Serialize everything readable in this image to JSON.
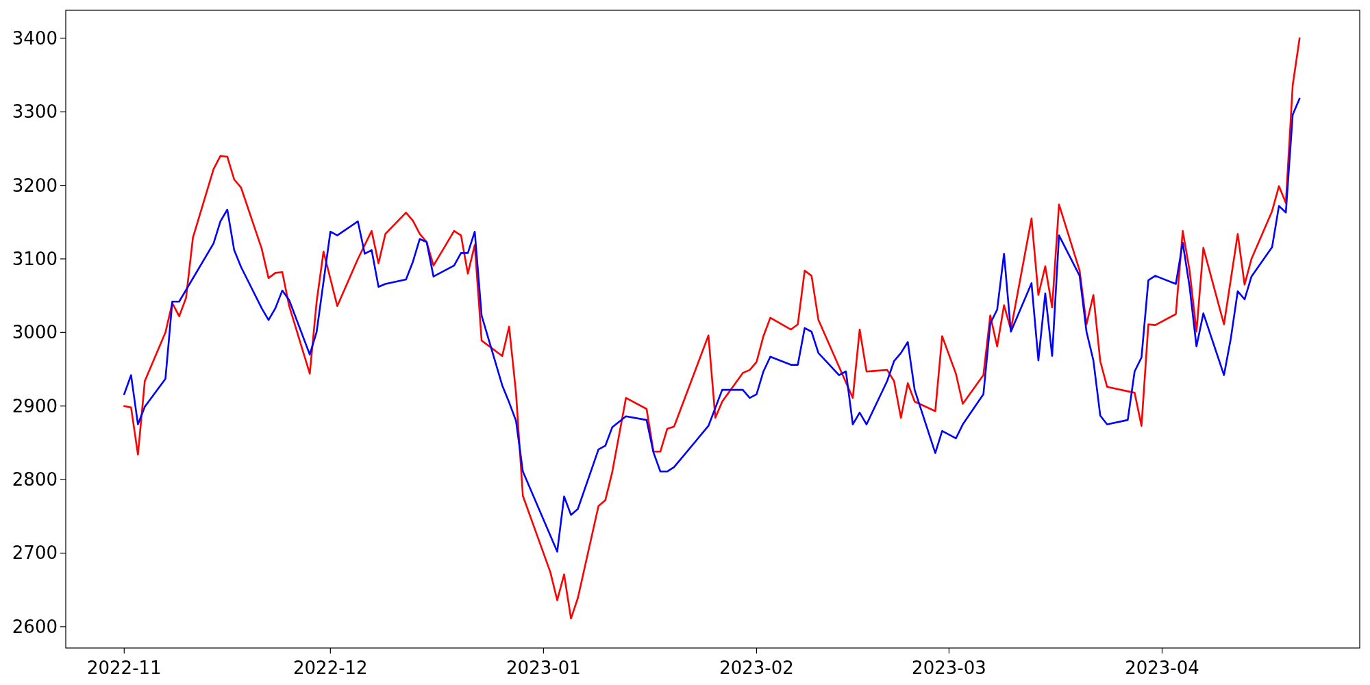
{
  "chart_data": {
    "type": "line",
    "xlim": [
      "2022-10-23T12:00",
      "2023-04-29T18:00"
    ],
    "ylim": [
      2571,
      3438
    ],
    "xticks": [
      "2022-11",
      "2022-12",
      "2023-01",
      "2023-02",
      "2023-03",
      "2023-04"
    ],
    "yticks": [
      2600,
      2700,
      2800,
      2900,
      3000,
      3100,
      3200,
      3300,
      3400
    ],
    "series": [
      {
        "color": "#ff0000",
        "x": [
          "2022-11-01",
          "2022-11-02",
          "2022-11-03",
          "2022-11-04",
          "2022-11-07",
          "2022-11-08",
          "2022-11-09",
          "2022-11-10",
          "2022-11-11",
          "2022-11-14",
          "2022-11-15",
          "2022-11-16",
          "2022-11-17",
          "2022-11-18",
          "2022-11-21",
          "2022-11-22",
          "2022-11-23",
          "2022-11-24",
          "2022-11-25",
          "2022-11-28",
          "2022-11-29",
          "2022-11-30",
          "2022-12-02",
          "2022-12-05",
          "2022-12-07",
          "2022-12-08",
          "2022-12-09",
          "2022-12-12",
          "2022-12-13",
          "2022-12-14",
          "2022-12-15",
          "2022-12-16",
          "2022-12-19",
          "2022-12-20",
          "2022-12-21",
          "2022-12-22",
          "2022-12-23",
          "2022-12-26",
          "2022-12-27",
          "2022-12-28",
          "2022-12-29",
          "2023-01-02",
          "2023-01-03",
          "2023-01-04",
          "2023-01-05",
          "2023-01-06",
          "2023-01-09",
          "2023-01-10",
          "2023-01-11",
          "2023-01-13",
          "2023-01-16",
          "2023-01-17",
          "2023-01-18",
          "2023-01-19",
          "2023-01-20",
          "2023-01-25",
          "2023-01-26",
          "2023-01-27",
          "2023-01-30",
          "2023-01-31",
          "2023-02-01",
          "2023-02-02",
          "2023-02-03",
          "2023-02-06",
          "2023-02-07",
          "2023-02-08",
          "2023-02-09",
          "2023-02-10",
          "2023-02-15",
          "2023-02-16",
          "2023-02-17",
          "2023-02-20",
          "2023-02-21",
          "2023-02-22",
          "2023-02-23",
          "2023-02-24",
          "2023-02-27",
          "2023-02-28",
          "2023-03-02",
          "2023-03-03",
          "2023-03-06",
          "2023-03-07",
          "2023-03-08",
          "2023-03-09",
          "2023-03-10",
          "2023-03-13",
          "2023-03-14",
          "2023-03-15",
          "2023-03-16",
          "2023-03-17",
          "2023-03-20",
          "2023-03-21",
          "2023-03-22",
          "2023-03-23",
          "2023-03-24",
          "2023-03-28",
          "2023-03-29",
          "2023-03-30",
          "2023-03-31",
          "2023-04-03",
          "2023-04-04",
          "2023-04-05",
          "2023-04-06",
          "2023-04-07",
          "2023-04-10",
          "2023-04-12",
          "2023-04-13",
          "2023-04-14",
          "2023-04-17",
          "2023-04-18",
          "2023-04-19",
          "2023-04-20",
          "2023-04-21"
        ],
        "values": [
          2900,
          2898,
          2834,
          2934,
          3000,
          3040,
          3022,
          3047,
          3129,
          3222,
          3240,
          3239,
          3208,
          3197,
          3114,
          3074,
          3081,
          3082,
          3036,
          2944,
          3042,
          3110,
          3036,
          3100,
          3138,
          3094,
          3134,
          3163,
          3152,
          3134,
          3123,
          3091,
          3138,
          3132,
          3080,
          3119,
          2989,
          2968,
          3008,
          2918,
          2778,
          2674,
          2636,
          2671,
          2611,
          2639,
          2764,
          2772,
          2810,
          2911,
          2896,
          2838,
          2838,
          2869,
          2872,
          2996,
          2884,
          2906,
          2945,
          2949,
          2960,
          2995,
          3020,
          3004,
          3011,
          3084,
          3077,
          3017,
          2911,
          3004,
          2947,
          2949,
          2934,
          2884,
          2931,
          2906,
          2893,
          2995,
          2944,
          2903,
          2942,
          3023,
          2981,
          3037,
          3004,
          3155,
          3051,
          3090,
          3034,
          3174,
          3084,
          3011,
          3051,
          2961,
          2926,
          2918,
          2873,
          3011,
          3010,
          3025,
          3138,
          3084,
          3001,
          3115,
          3011,
          3134,
          3065,
          3100,
          3165,
          3199,
          3176,
          3336,
          3400
        ]
      },
      {
        "color": "#0000ff",
        "x": [
          "2022-11-01",
          "2022-11-02",
          "2022-11-03",
          "2022-11-04",
          "2022-11-07",
          "2022-11-08",
          "2022-11-09",
          "2022-11-14",
          "2022-11-15",
          "2022-11-16",
          "2022-11-17",
          "2022-11-18",
          "2022-11-21",
          "2022-11-22",
          "2022-11-23",
          "2022-11-24",
          "2022-11-25",
          "2022-11-28",
          "2022-11-29",
          "2022-12-01",
          "2022-12-02",
          "2022-12-05",
          "2022-12-06",
          "2022-12-07",
          "2022-12-08",
          "2022-12-09",
          "2022-12-12",
          "2022-12-13",
          "2022-12-14",
          "2022-12-15",
          "2022-12-16",
          "2022-12-19",
          "2022-12-20",
          "2022-12-21",
          "2022-12-22",
          "2022-12-23",
          "2022-12-26",
          "2022-12-27",
          "2022-12-28",
          "2022-12-29",
          "2023-01-03",
          "2023-01-04",
          "2023-01-05",
          "2023-01-06",
          "2023-01-09",
          "2023-01-10",
          "2023-01-11",
          "2023-01-13",
          "2023-01-16",
          "2023-01-17",
          "2023-01-18",
          "2023-01-19",
          "2023-01-20",
          "2023-01-25",
          "2023-01-27",
          "2023-01-30",
          "2023-01-31",
          "2023-02-01",
          "2023-02-02",
          "2023-02-03",
          "2023-02-06",
          "2023-02-07",
          "2023-02-08",
          "2023-02-09",
          "2023-02-10",
          "2023-02-13",
          "2023-02-14",
          "2023-02-15",
          "2023-02-16",
          "2023-02-17",
          "2023-02-20",
          "2023-02-21",
          "2023-02-22",
          "2023-02-23",
          "2023-02-24",
          "2023-02-27",
          "2023-02-28",
          "2023-03-02",
          "2023-03-03",
          "2023-03-06",
          "2023-03-07",
          "2023-03-08",
          "2023-03-09",
          "2023-03-10",
          "2023-03-13",
          "2023-03-14",
          "2023-03-15",
          "2023-03-16",
          "2023-03-17",
          "2023-03-20",
          "2023-03-21",
          "2023-03-22",
          "2023-03-23",
          "2023-03-24",
          "2023-03-27",
          "2023-03-28",
          "2023-03-29",
          "2023-03-30",
          "2023-03-31",
          "2023-04-03",
          "2023-04-04",
          "2023-04-05",
          "2023-04-06",
          "2023-04-07",
          "2023-04-10",
          "2023-04-11",
          "2023-04-12",
          "2023-04-13",
          "2023-04-14",
          "2023-04-17",
          "2023-04-18",
          "2023-04-19",
          "2023-04-20",
          "2023-04-21"
        ],
        "values": [
          2916,
          2942,
          2875,
          2899,
          2937,
          3042,
          3042,
          3121,
          3151,
          3167,
          3112,
          3089,
          3033,
          3017,
          3033,
          3057,
          3044,
          2970,
          3001,
          3137,
          3132,
          3151,
          3107,
          3112,
          3062,
          3066,
          3072,
          3096,
          3127,
          3123,
          3076,
          3091,
          3108,
          3108,
          3137,
          3023,
          2928,
          2905,
          2880,
          2811,
          2702,
          2777,
          2752,
          2760,
          2841,
          2846,
          2871,
          2886,
          2881,
          2837,
          2811,
          2811,
          2817,
          2873,
          2922,
          2922,
          2911,
          2916,
          2947,
          2967,
          2956,
          2956,
          3006,
          3001,
          2972,
          2942,
          2947,
          2875,
          2891,
          2875,
          2934,
          2961,
          2972,
          2987,
          2922,
          2836,
          2866,
          2856,
          2875,
          2916,
          3012,
          3031,
          3107,
          3001,
          3067,
          2962,
          3053,
          2968,
          3132,
          3077,
          3001,
          2962,
          2887,
          2875,
          2881,
          2947,
          2966,
          3071,
          3077,
          3066,
          3122,
          3062,
          2981,
          3026,
          2942,
          2992,
          3056,
          3045,
          3076,
          3116,
          3172,
          3163,
          3296,
          3318
        ]
      }
    ]
  }
}
